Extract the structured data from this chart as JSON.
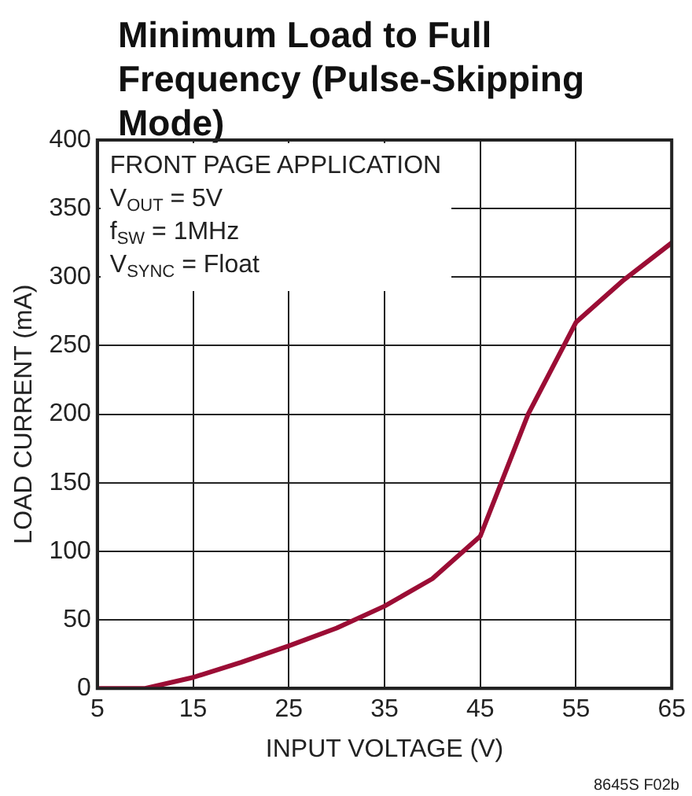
{
  "chart_data": {
    "type": "line",
    "title": "Minimum Load to Full Frequency (Pulse-Skipping Mode)",
    "xlabel": "INPUT VOLTAGE (V)",
    "ylabel": "LOAD CURRENT (mA)",
    "x": [
      5,
      10,
      15,
      20,
      25,
      30,
      35,
      40,
      45,
      50,
      55,
      60,
      65
    ],
    "series": [
      {
        "color": "#9b0d35",
        "values": [
          0,
          0,
          8,
          19,
          31,
          44,
          60,
          80,
          111,
          200,
          267,
          298,
          325
        ]
      }
    ],
    "xlim": [
      5,
      65
    ],
    "xticks": [
      5,
      15,
      25,
      35,
      45,
      55,
      65
    ],
    "ylim": [
      0,
      400
    ],
    "yticks": [
      0,
      50,
      100,
      150,
      200,
      250,
      300,
      350,
      400
    ],
    "grid": true,
    "legend": false,
    "marker": "none",
    "line_style": "solid",
    "annotations": [
      "FRONT PAGE APPLICATION",
      "V$_{OUT}$ = 5V",
      "f$_{SW}$ = 1MHz",
      "V$_{SYNC}$ = Float",
      "8645S F02b"
    ]
  }
}
